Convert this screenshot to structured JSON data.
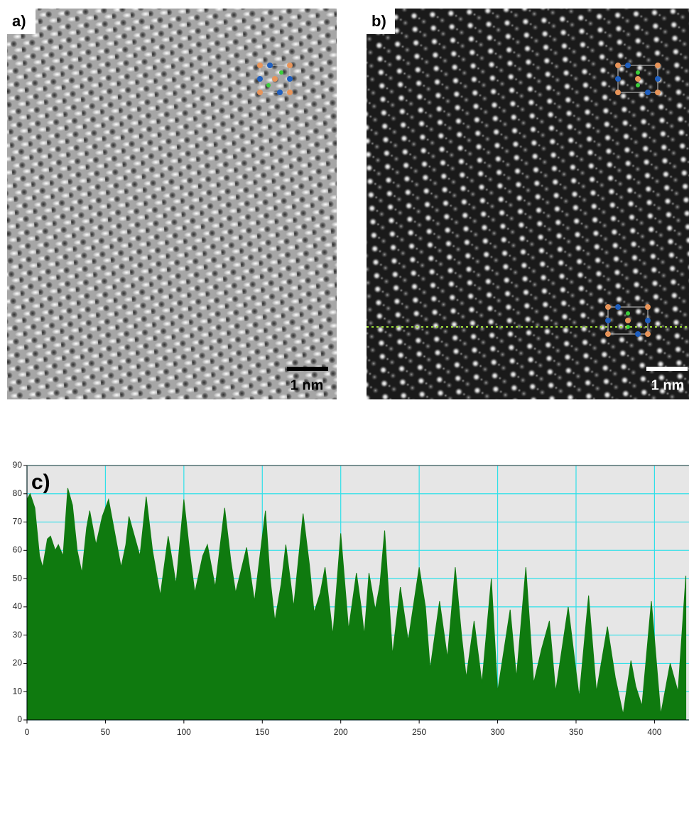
{
  "panels": {
    "a": {
      "label": "a)",
      "scale_bar": "1 nm"
    },
    "b": {
      "label": "b)",
      "scale_bar": "1 nm"
    }
  },
  "chart_data": {
    "type": "area",
    "title": "c)",
    "color": "#0f7a0f",
    "grid": true,
    "x": [
      0,
      2,
      5,
      8,
      10,
      13,
      15,
      18,
      20,
      23,
      26,
      29,
      32,
      35,
      38,
      40,
      44,
      48,
      52,
      56,
      60,
      63,
      65,
      68,
      72,
      76,
      80,
      85,
      90,
      93,
      95,
      100,
      104,
      107,
      112,
      115,
      120,
      126,
      130,
      133,
      140,
      145,
      152,
      155,
      158,
      162,
      165,
      170,
      176,
      180,
      183,
      187,
      190,
      195,
      200,
      205,
      210,
      213,
      215,
      218,
      222,
      225,
      228,
      233,
      238,
      243,
      250,
      254,
      257,
      263,
      268,
      273,
      277,
      280,
      285,
      290,
      296,
      300,
      308,
      312,
      318,
      323,
      328,
      333,
      337,
      345,
      352,
      358,
      363,
      370,
      375,
      380,
      385,
      388,
      392,
      398,
      404,
      410,
      415,
      420
    ],
    "values": [
      78,
      80,
      75,
      58,
      54,
      64,
      65,
      60,
      62,
      58,
      82,
      76,
      60,
      52,
      68,
      74,
      62,
      72,
      78,
      66,
      54,
      62,
      72,
      66,
      58,
      79,
      60,
      44,
      65,
      55,
      48,
      78,
      58,
      45,
      58,
      62,
      47,
      75,
      56,
      45,
      61,
      42,
      74,
      50,
      35,
      48,
      62,
      40,
      73,
      55,
      38,
      45,
      54,
      30,
      66,
      32,
      52,
      40,
      30,
      52,
      39,
      48,
      67,
      23,
      47,
      28,
      54,
      40,
      18,
      42,
      22,
      54,
      30,
      15,
      35,
      13,
      50,
      10,
      39,
      15,
      54,
      13,
      25,
      35,
      10,
      40,
      8,
      44,
      10,
      33,
      15,
      2,
      21,
      12,
      5,
      42,
      2,
      20,
      10,
      51
    ],
    "xlim": [
      0,
      422
    ],
    "ylim": [
      0,
      90
    ],
    "xticks": [
      0,
      50,
      100,
      150,
      200,
      250,
      300,
      350,
      400
    ],
    "yticks": [
      0,
      10,
      20,
      30,
      40,
      50,
      60,
      70,
      80,
      90
    ]
  }
}
